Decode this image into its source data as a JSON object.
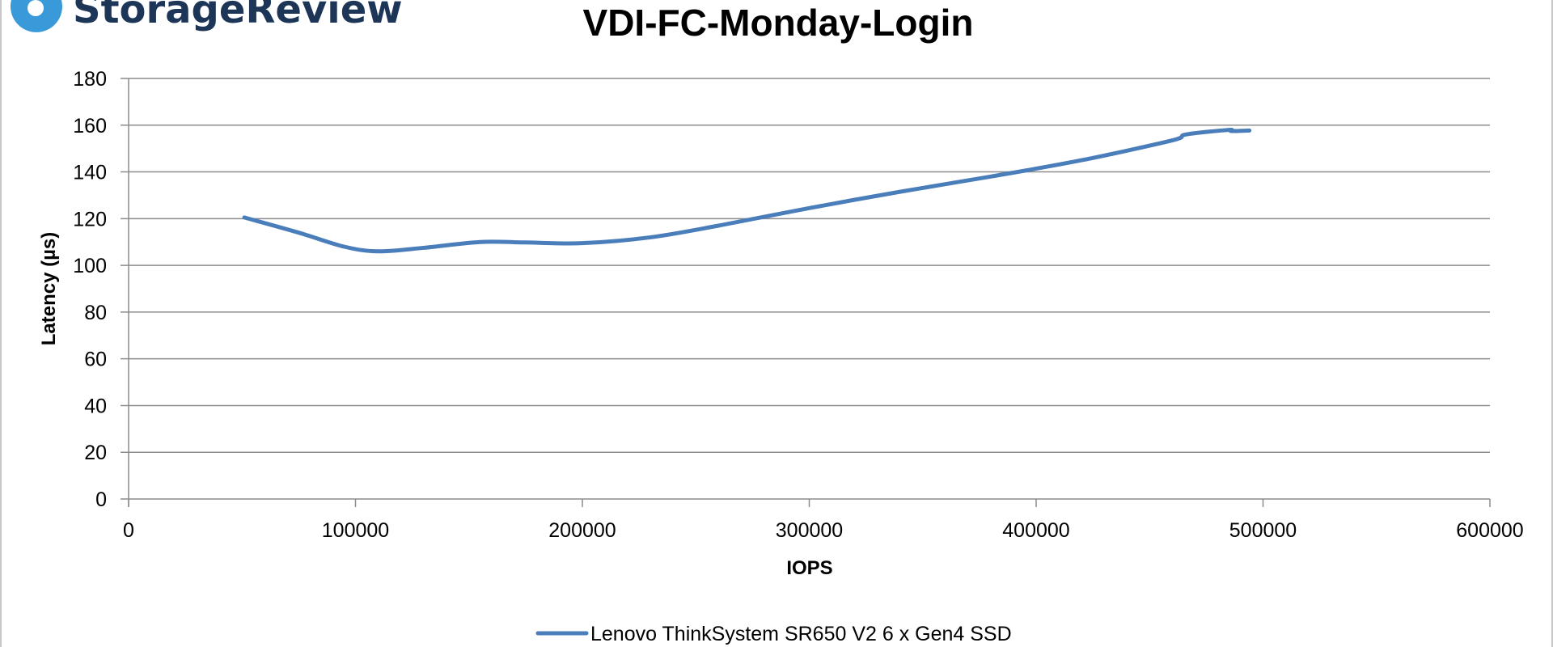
{
  "brand": {
    "logo_text": "StorageReview",
    "logo_color": "#1d3557",
    "icon_color": "#3a9ad9"
  },
  "chart_data": {
    "type": "line",
    "title": "VDI-FC-Monday-Login",
    "xlabel": "IOPS",
    "ylabel": "Latency (µs)",
    "xlim": [
      0,
      600000
    ],
    "ylim": [
      0,
      180
    ],
    "x_ticks": [
      0,
      100000,
      200000,
      300000,
      400000,
      500000,
      600000
    ],
    "y_ticks": [
      0,
      20,
      40,
      60,
      80,
      100,
      120,
      140,
      160,
      180
    ],
    "grid": "horizontal",
    "legend_position": "bottom",
    "series": [
      {
        "name": "Lenovo ThinkSystem SR650 V2 6 x Gen4 SSD",
        "color": "#4a7ebb",
        "points": [
          [
            51000,
            120.5
          ],
          [
            75000,
            114
          ],
          [
            95000,
            108
          ],
          [
            110000,
            106
          ],
          [
            130000,
            107.5
          ],
          [
            155000,
            110
          ],
          [
            175000,
            109.8
          ],
          [
            200000,
            109.5
          ],
          [
            230000,
            112
          ],
          [
            260000,
            117
          ],
          [
            300000,
            124.5
          ],
          [
            340000,
            131.5
          ],
          [
            380000,
            138
          ],
          [
            420000,
            145
          ],
          [
            460000,
            153.5
          ],
          [
            466000,
            156
          ],
          [
            485000,
            158
          ],
          [
            486000,
            157.5
          ],
          [
            494000,
            157.7
          ]
        ]
      }
    ]
  }
}
